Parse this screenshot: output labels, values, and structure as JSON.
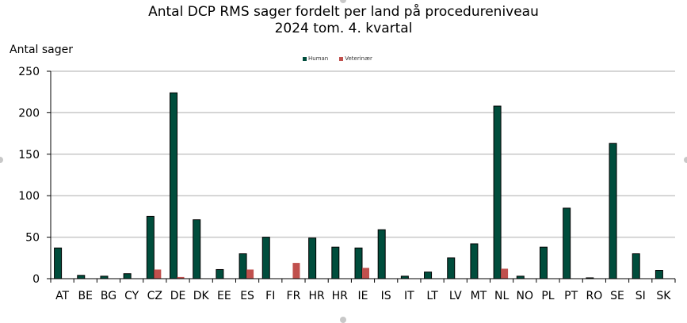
{
  "chart_data": {
    "type": "bar",
    "title": "Antal DCP RMS sager fordelt per land på procedureniveau",
    "subtitle": "2024 tom. 4. kvartal",
    "xlabel": "",
    "ylabel": "Antal sager",
    "ylim": [
      0,
      250
    ],
    "yticks": [
      0,
      50,
      100,
      150,
      200,
      250
    ],
    "grid": true,
    "legend_position": "top-center",
    "categories": [
      "AT",
      "BE",
      "BG",
      "CY",
      "CZ",
      "DE",
      "DK",
      "EE",
      "ES",
      "FI",
      "FR",
      "HR",
      "HR",
      "IE",
      "IS",
      "IT",
      "LT",
      "LV",
      "MT",
      "NL",
      "NO",
      "PL",
      "PT",
      "RO",
      "SE",
      "SI",
      "SK"
    ],
    "series": [
      {
        "name": "Human",
        "color": "#004d3c",
        "values": [
          37,
          4,
          3,
          6,
          75,
          224,
          71,
          11,
          30,
          50,
          0,
          49,
          38,
          37,
          59,
          3,
          8,
          25,
          42,
          208,
          3,
          38,
          85,
          1,
          163,
          30,
          10
        ]
      },
      {
        "name": "Veterinær",
        "color": "#c0504d",
        "values": [
          0,
          0,
          0,
          0,
          11,
          2,
          0,
          0,
          11,
          0,
          19,
          0,
          0,
          13,
          0,
          0,
          0,
          0,
          0,
          12,
          0,
          0,
          0,
          0,
          0,
          0,
          0
        ]
      }
    ]
  }
}
